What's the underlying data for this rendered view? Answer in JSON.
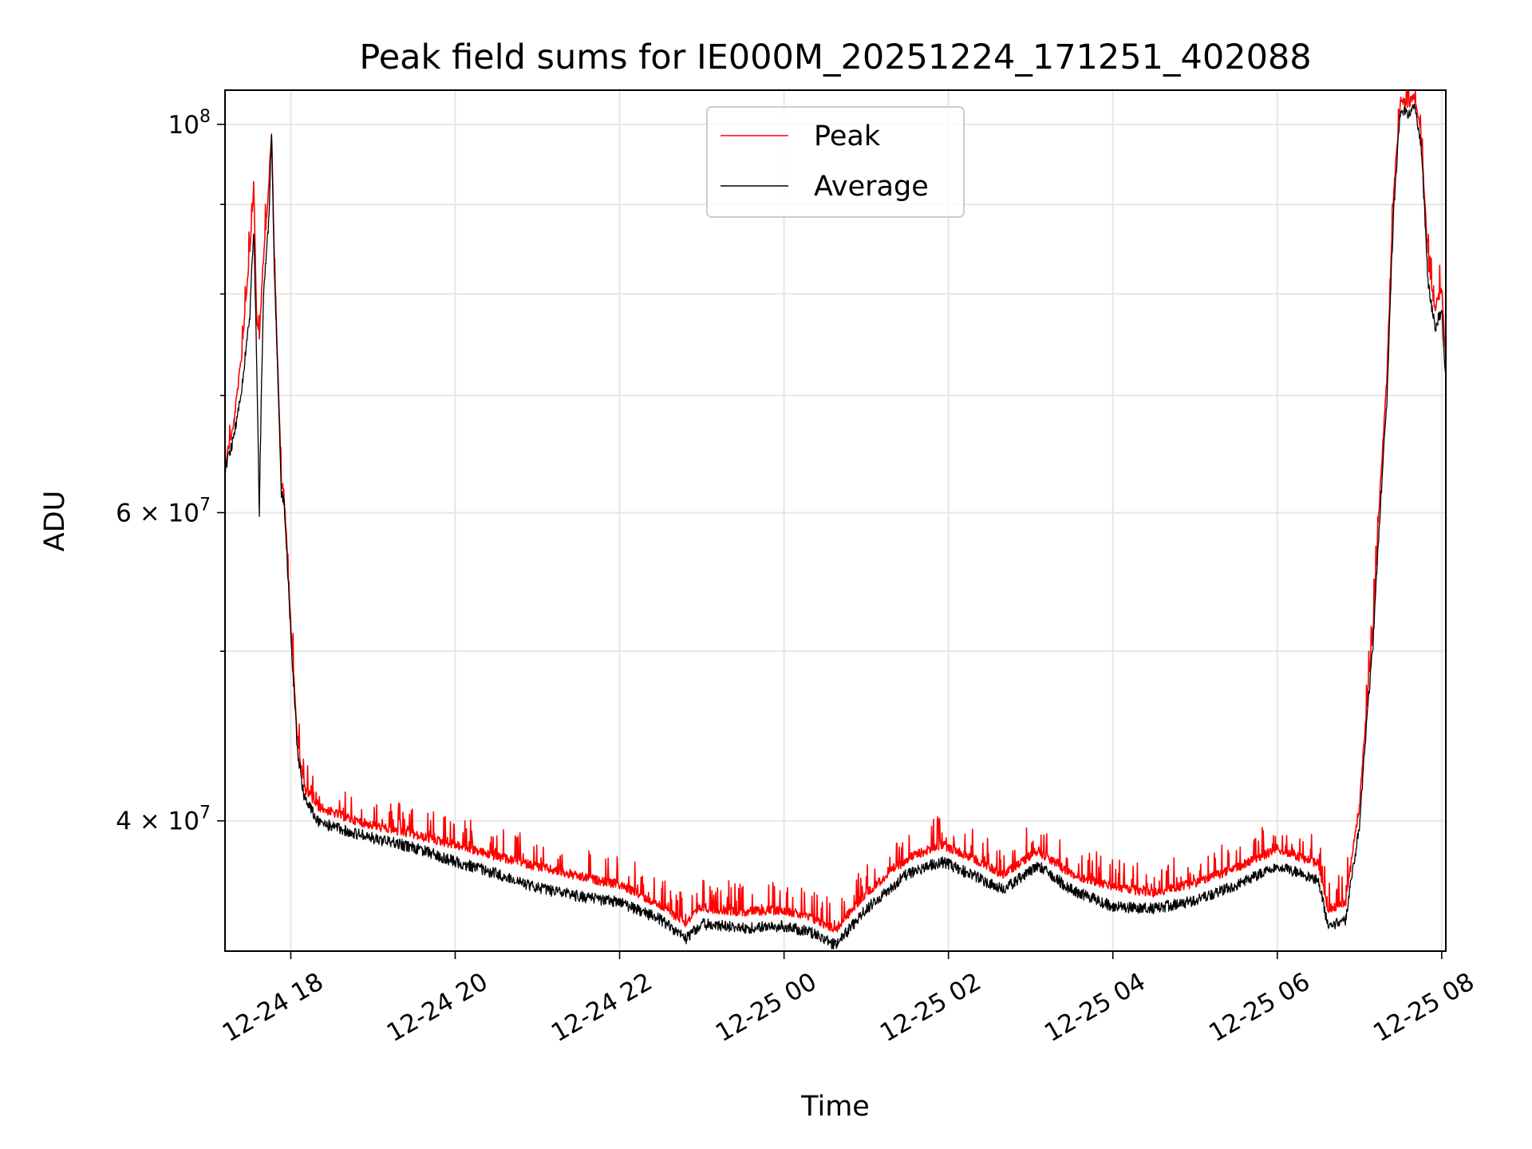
{
  "chart_data": {
    "type": "line",
    "title": "Peak field sums for IE000M_20251224_171251_402088",
    "xlabel": "Time",
    "ylabel": "ADU",
    "yscale": "log",
    "x_ticks": [
      "12-24 18",
      "12-24 20",
      "12-24 22",
      "12-25 00",
      "12-25 02",
      "12-25 04",
      "12-25 06",
      "12-25 08"
    ],
    "y_ticks_major": [
      {
        "value": 100000000,
        "mantissa": "",
        "exponent": "8"
      },
      {
        "value": 60000000,
        "mantissa": "6",
        "exponent": "7"
      },
      {
        "value": 40000000,
        "mantissa": "4",
        "exponent": "7"
      }
    ],
    "y_ticks_minor": [
      90000000,
      80000000,
      70000000,
      50000000
    ],
    "xlim": [
      "2025-12-24 17:12",
      "2025-12-25 08:03"
    ],
    "ylim": [
      33700000,
      104600000
    ],
    "grid": true,
    "legend_position": "upper center",
    "series": [
      {
        "name": "Peak",
        "color": "#ff0000",
        "x": [
          "2025-12-24 17:12",
          "2025-12-24 17:18",
          "2025-12-24 17:24",
          "2025-12-24 17:30",
          "2025-12-24 17:33",
          "2025-12-24 17:35",
          "2025-12-24 17:37",
          "2025-12-24 17:40",
          "2025-12-24 17:44",
          "2025-12-24 17:46",
          "2025-12-24 17:48",
          "2025-12-24 17:53",
          "2025-12-24 17:55",
          "2025-12-24 18:00",
          "2025-12-24 18:05",
          "2025-12-24 18:10",
          "2025-12-24 18:20",
          "2025-12-24 18:30",
          "2025-12-24 18:45",
          "2025-12-24 19:00",
          "2025-12-24 19:30",
          "2025-12-24 20:00",
          "2025-12-24 20:30",
          "2025-12-24 21:00",
          "2025-12-24 21:30",
          "2025-12-24 22:00",
          "2025-12-24 22:30",
          "2025-12-24 22:48",
          "2025-12-24 23:00",
          "2025-12-24 23:30",
          "2025-12-25 00:00",
          "2025-12-25 00:20",
          "2025-12-25 00:38",
          "2025-12-25 01:00",
          "2025-12-25 01:30",
          "2025-12-25 01:55",
          "2025-12-25 02:15",
          "2025-12-25 02:40",
          "2025-12-25 03:05",
          "2025-12-25 03:30",
          "2025-12-25 04:00",
          "2025-12-25 04:30",
          "2025-12-25 05:00",
          "2025-12-25 05:30",
          "2025-12-25 06:00",
          "2025-12-25 06:30",
          "2025-12-25 06:37",
          "2025-12-25 06:50",
          "2025-12-25 07:00",
          "2025-12-25 07:10",
          "2025-12-25 07:20",
          "2025-12-25 07:25",
          "2025-12-25 07:30",
          "2025-12-25 07:35",
          "2025-12-25 07:40",
          "2025-12-25 07:45",
          "2025-12-25 07:50",
          "2025-12-25 07:55",
          "2025-12-25 08:00",
          "2025-12-25 08:03"
        ],
        "y": [
          64500000,
          67500000,
          74000000,
          85000000,
          93000000,
          78000000,
          76000000,
          84000000,
          93000000,
          99500000,
          84000000,
          63000000,
          62000000,
          52000000,
          44500000,
          42000000,
          41000000,
          40700000,
          40300000,
          40000000,
          39500000,
          39000000,
          38400000,
          37900000,
          37400000,
          37000000,
          36000000,
          35200000,
          35900000,
          35700000,
          35800000,
          35400000,
          34900000,
          36600000,
          38300000,
          39000000,
          38400000,
          37500000,
          38700000,
          37500000,
          36900000,
          36600000,
          37100000,
          37800000,
          38800000,
          38000000,
          35800000,
          36200000,
          41000000,
          52000000,
          72000000,
          92000000,
          104000000,
          103000000,
          104500000,
          99000000,
          84000000,
          79000000,
          81000000,
          74000000
        ]
      },
      {
        "name": "Average",
        "color": "#000000",
        "x": [
          "2025-12-24 17:12",
          "2025-12-24 17:18",
          "2025-12-24 17:24",
          "2025-12-24 17:30",
          "2025-12-24 17:33",
          "2025-12-24 17:35",
          "2025-12-24 17:37",
          "2025-12-24 17:40",
          "2025-12-24 17:44",
          "2025-12-24 17:46",
          "2025-12-24 17:48",
          "2025-12-24 17:53",
          "2025-12-24 17:55",
          "2025-12-24 18:00",
          "2025-12-24 18:05",
          "2025-12-24 18:10",
          "2025-12-24 18:20",
          "2025-12-24 18:30",
          "2025-12-24 18:45",
          "2025-12-24 19:00",
          "2025-12-24 19:30",
          "2025-12-24 20:00",
          "2025-12-24 20:30",
          "2025-12-24 21:00",
          "2025-12-24 21:30",
          "2025-12-24 22:00",
          "2025-12-24 22:30",
          "2025-12-24 22:48",
          "2025-12-24 23:00",
          "2025-12-24 23:30",
          "2025-12-25 00:00",
          "2025-12-25 00:20",
          "2025-12-25 00:38",
          "2025-12-25 01:00",
          "2025-12-25 01:30",
          "2025-12-25 01:55",
          "2025-12-25 02:15",
          "2025-12-25 02:40",
          "2025-12-25 03:05",
          "2025-12-25 03:30",
          "2025-12-25 04:00",
          "2025-12-25 04:30",
          "2025-12-25 05:00",
          "2025-12-25 05:30",
          "2025-12-25 06:00",
          "2025-12-25 06:30",
          "2025-12-25 06:37",
          "2025-12-25 06:50",
          "2025-12-25 07:00",
          "2025-12-25 07:10",
          "2025-12-25 07:20",
          "2025-12-25 07:25",
          "2025-12-25 07:30",
          "2025-12-25 07:35",
          "2025-12-25 07:40",
          "2025-12-25 07:45",
          "2025-12-25 07:50",
          "2025-12-25 07:55",
          "2025-12-25 08:00",
          "2025-12-25 08:03"
        ],
        "y": [
          64000000,
          66500000,
          71000000,
          78000000,
          88000000,
          74000000,
          60500000,
          80000000,
          89000000,
          99500000,
          83000000,
          62000000,
          61500000,
          51500000,
          44000000,
          41500000,
          40300000,
          40000000,
          39700000,
          39400000,
          38900000,
          38200000,
          37600000,
          36900000,
          36500000,
          36200000,
          35400000,
          34500000,
          35200000,
          35000000,
          35100000,
          34800000,
          34200000,
          35900000,
          37600000,
          38200000,
          37600000,
          36800000,
          38000000,
          36800000,
          36000000,
          35900000,
          36300000,
          37000000,
          38000000,
          37300000,
          35100000,
          35400000,
          40000000,
          51000000,
          70000000,
          90000000,
          103000000,
          102000000,
          103500000,
          98000000,
          82000000,
          77000000,
          79000000,
          71500000
        ]
      }
    ]
  }
}
